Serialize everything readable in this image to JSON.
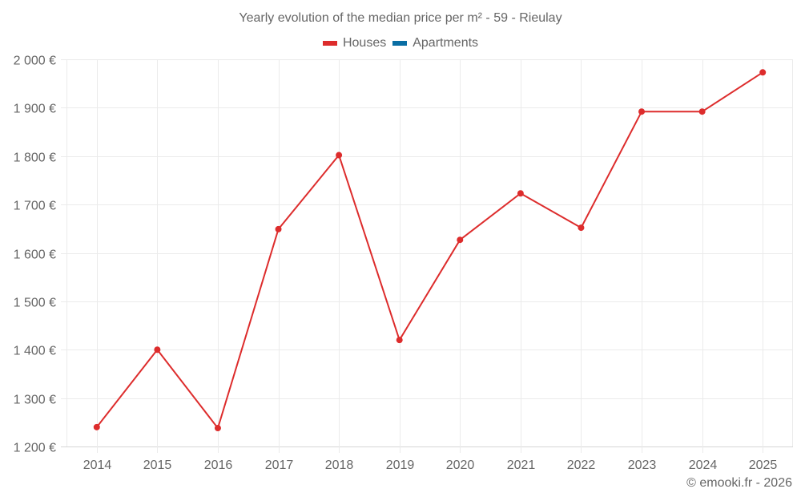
{
  "title": "Yearly evolution of the median price per m² - 59 - Rieulay",
  "legend": [
    {
      "label": "Houses",
      "color": "#dd2c2c"
    },
    {
      "label": "Apartments",
      "color": "#0a6ea4"
    }
  ],
  "credit": "© emooki.fr - 2026",
  "chart_data": {
    "type": "line",
    "title": "Yearly evolution of the median price per m² - 59 - Rieulay",
    "xlabel": "",
    "ylabel": "",
    "categories": [
      "2014",
      "2015",
      "2016",
      "2017",
      "2018",
      "2019",
      "2020",
      "2021",
      "2022",
      "2023",
      "2024",
      "2025"
    ],
    "series": [
      {
        "name": "Houses",
        "color": "#dd2c2c",
        "values": [
          1240,
          1400,
          1238,
          1649,
          1802,
          1420,
          1627,
          1723,
          1652,
          1892,
          1892,
          1973
        ]
      },
      {
        "name": "Apartments",
        "color": "#0a6ea4",
        "values": []
      }
    ],
    "ylim": [
      1200,
      2000
    ],
    "yticks": [
      1200,
      1300,
      1400,
      1500,
      1600,
      1700,
      1800,
      1900,
      2000
    ],
    "ytick_labels": [
      "1 200 €",
      "1 300 €",
      "1 400 €",
      "1 500 €",
      "1 600 €",
      "1 700 €",
      "1 800 €",
      "1 900 €",
      "2 000 €"
    ],
    "grid": true,
    "legend_position": "top"
  }
}
